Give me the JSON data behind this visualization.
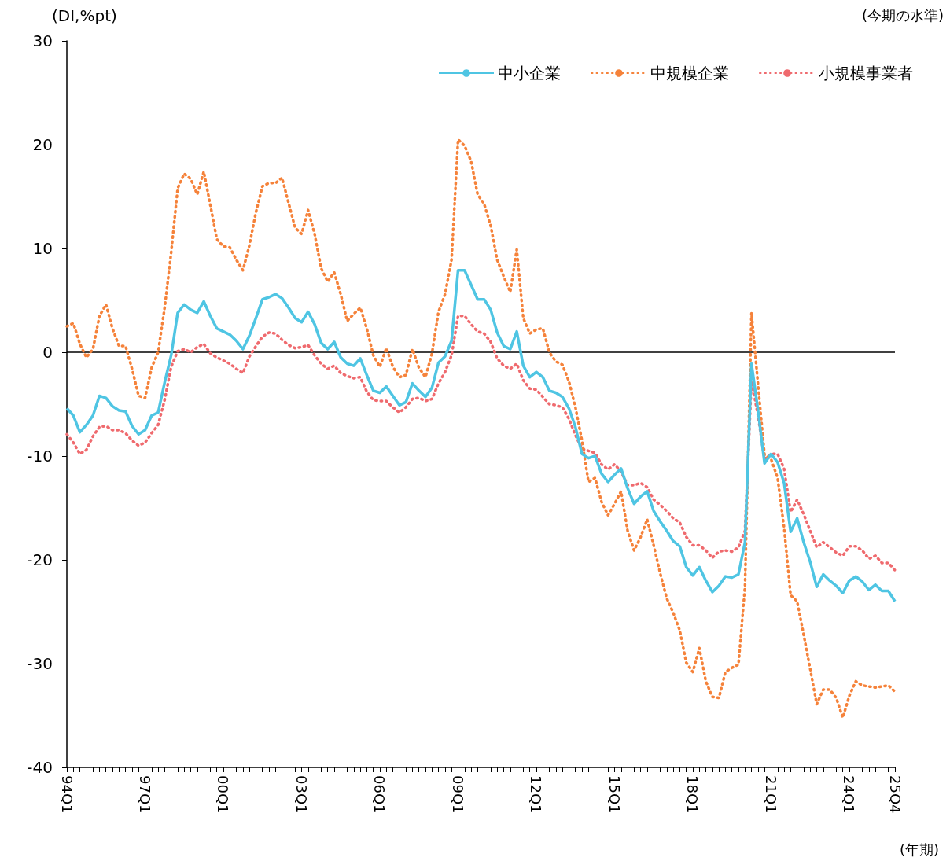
{
  "chart_data": {
    "type": "line",
    "ylabel": "(DI,%pt)",
    "xlabel": "(年期)",
    "annotations": [
      "(今期の水準)"
    ],
    "categories": [
      "94Q1",
      null,
      null,
      null,
      null,
      null,
      null,
      null,
      null,
      null,
      null,
      null,
      "97Q1",
      null,
      null,
      null,
      null,
      null,
      null,
      null,
      null,
      null,
      null,
      null,
      "00Q1",
      null,
      null,
      null,
      null,
      null,
      null,
      null,
      null,
      null,
      null,
      null,
      "03Q1",
      null,
      null,
      null,
      null,
      null,
      null,
      null,
      null,
      null,
      null,
      null,
      "06Q1",
      null,
      null,
      null,
      null,
      null,
      null,
      null,
      null,
      null,
      null,
      null,
      "09Q1",
      null,
      null,
      null,
      null,
      null,
      null,
      null,
      null,
      null,
      null,
      null,
      "12Q1",
      null,
      null,
      null,
      null,
      null,
      null,
      null,
      null,
      null,
      null,
      null,
      "15Q1",
      null,
      null,
      null,
      null,
      null,
      null,
      null,
      null,
      null,
      null,
      null,
      "18Q1",
      null,
      null,
      null,
      null,
      null,
      null,
      null,
      null,
      null,
      null,
      null,
      "21Q1",
      null,
      null,
      null,
      null,
      null,
      null,
      null,
      null,
      null,
      null,
      null,
      "24Q1",
      null,
      null,
      null,
      null,
      null,
      null,
      "25Q4"
    ],
    "series": [
      {
        "name": "中小企業",
        "color": "#4fc5e3",
        "line_style": "solid",
        "values": [
          -5.4,
          -6.1,
          -7.7,
          -7.0,
          -6.1,
          -4.2,
          -4.4,
          -5.2,
          -5.6,
          -5.7,
          -7.1,
          -7.9,
          -7.5,
          -6.1,
          -5.8,
          -2.9,
          -0.3,
          3.8,
          4.6,
          4.1,
          3.8,
          4.9,
          3.5,
          2.3,
          2.0,
          1.7,
          1.1,
          0.3,
          1.6,
          3.3,
          5.1,
          5.3,
          5.6,
          5.2,
          4.3,
          3.3,
          2.9,
          3.9,
          2.7,
          0.9,
          0.3,
          1.0,
          -0.5,
          -1.1,
          -1.3,
          -0.6,
          -2.2,
          -3.7,
          -3.9,
          -3.3,
          -4.2,
          -5.1,
          -4.8,
          -3.0,
          -3.7,
          -4.3,
          -3.4,
          -1.0,
          -0.4,
          1.1,
          7.9,
          7.9,
          6.5,
          5.1,
          5.1,
          4.1,
          1.9,
          0.6,
          0.3,
          2.0,
          -1.3,
          -2.4,
          -1.9,
          -2.4,
          -3.7,
          -3.9,
          -4.3,
          -5.4,
          -7.2,
          -9.8,
          -10.2,
          -10.0,
          -11.7,
          -12.5,
          -11.8,
          -11.2,
          -13.1,
          -14.6,
          -13.9,
          -13.4,
          -15.3,
          -16.3,
          -17.2,
          -18.2,
          -18.7,
          -20.7,
          -21.5,
          -20.7,
          -22.0,
          -23.1,
          -22.5,
          -21.6,
          -21.7,
          -21.4,
          -18.3,
          -1.1,
          -5.6,
          -10.7,
          -9.8,
          -10.6,
          -12.6,
          -17.3,
          -16.0,
          -18.3,
          -20.2,
          -22.6,
          -21.4,
          -22.0,
          -22.5,
          -23.2,
          -22.0,
          -21.6,
          -22.1,
          -22.9,
          -22.4,
          -23.0,
          -23.0,
          -24.0
        ]
      },
      {
        "name": "中規模企業",
        "color": "#f5823a",
        "line_style": "dotted",
        "values": [
          2.5,
          2.8,
          0.8,
          -0.5,
          0.3,
          3.5,
          4.6,
          2.3,
          0.6,
          0.6,
          -1.6,
          -4.2,
          -4.4,
          -1.5,
          0.0,
          4.3,
          9.6,
          15.8,
          17.2,
          16.7,
          15.2,
          17.4,
          14.2,
          10.9,
          10.2,
          10.1,
          8.9,
          7.9,
          10.3,
          13.5,
          16.0,
          16.3,
          16.3,
          16.8,
          14.4,
          12.0,
          11.4,
          13.7,
          11.4,
          8.1,
          6.8,
          7.7,
          5.6,
          3.0,
          3.7,
          4.3,
          2.3,
          -0.3,
          -1.4,
          0.4,
          -1.4,
          -2.4,
          -2.2,
          0.3,
          -1.5,
          -2.4,
          -0.1,
          3.9,
          5.6,
          8.9,
          20.5,
          19.9,
          18.4,
          15.2,
          14.3,
          12.2,
          8.9,
          7.3,
          5.8,
          9.9,
          3.3,
          1.8,
          2.2,
          2.3,
          0.0,
          -0.9,
          -1.2,
          -2.8,
          -5.3,
          -8.5,
          -12.5,
          -12.1,
          -14.4,
          -15.7,
          -14.6,
          -13.4,
          -17.2,
          -19.1,
          -17.8,
          -16.1,
          -18.6,
          -21.3,
          -23.7,
          -25.1,
          -26.8,
          -29.9,
          -30.8,
          -28.5,
          -31.7,
          -33.2,
          -33.3,
          -30.8,
          -30.4,
          -30.1,
          -22.6,
          3.8,
          -3.1,
          -9.9,
          -10.3,
          -12.1,
          -16.9,
          -23.4,
          -24.0,
          -27.2,
          -30.5,
          -33.9,
          -32.5,
          -32.5,
          -33.3,
          -35.2,
          -33.1,
          -31.7,
          -32.1,
          -32.2,
          -32.3,
          -32.2,
          -32.1,
          -32.7
        ]
      },
      {
        "name": "小規模事業者",
        "color": "#ef6a6e",
        "line_style": "dotted",
        "values": [
          -7.9,
          -8.7,
          -9.8,
          -9.4,
          -8.1,
          -7.2,
          -7.1,
          -7.5,
          -7.5,
          -7.8,
          -8.5,
          -9.0,
          -8.7,
          -7.8,
          -7.0,
          -4.6,
          -1.4,
          0.1,
          0.3,
          0.0,
          0.5,
          0.8,
          -0.1,
          -0.5,
          -0.8,
          -1.1,
          -1.6,
          -2.0,
          -0.4,
          0.6,
          1.5,
          1.9,
          1.8,
          1.2,
          0.7,
          0.4,
          0.5,
          0.7,
          -0.3,
          -1.1,
          -1.6,
          -1.3,
          -2.0,
          -2.3,
          -2.5,
          -2.4,
          -3.8,
          -4.6,
          -4.7,
          -4.7,
          -5.3,
          -5.8,
          -5.3,
          -4.5,
          -4.4,
          -4.7,
          -4.5,
          -3.0,
          -1.9,
          -0.3,
          3.5,
          3.5,
          2.7,
          2.0,
          1.8,
          1.0,
          -0.6,
          -1.3,
          -1.6,
          -1.1,
          -2.7,
          -3.5,
          -3.6,
          -4.3,
          -5.0,
          -5.1,
          -5.3,
          -6.4,
          -8.0,
          -9.3,
          -9.5,
          -9.7,
          -10.8,
          -11.3,
          -10.8,
          -11.5,
          -12.8,
          -12.8,
          -12.6,
          -13.0,
          -14.2,
          -14.7,
          -15.3,
          -16.0,
          -16.4,
          -17.8,
          -18.6,
          -18.6,
          -19.1,
          -19.8,
          -19.2,
          -19.1,
          -19.2,
          -18.8,
          -17.2,
          -2.8,
          -6.1,
          -10.3,
          -9.8,
          -9.8,
          -11.2,
          -15.4,
          -14.2,
          -15.6,
          -17.2,
          -18.8,
          -18.3,
          -18.8,
          -19.3,
          -19.6,
          -18.7,
          -18.7,
          -19.1,
          -19.9,
          -19.6,
          -20.3,
          -20.3,
          -21.0
        ]
      }
    ],
    "ylim": [
      -40,
      30
    ],
    "yticks": [
      -40,
      -30,
      -20,
      -10,
      0,
      10,
      20,
      30
    ],
    "ref_lines": [
      {
        "axis": "y",
        "value": 0,
        "color": "#000000"
      }
    ],
    "legend": "top right",
    "marker": "none",
    "grid": false
  }
}
